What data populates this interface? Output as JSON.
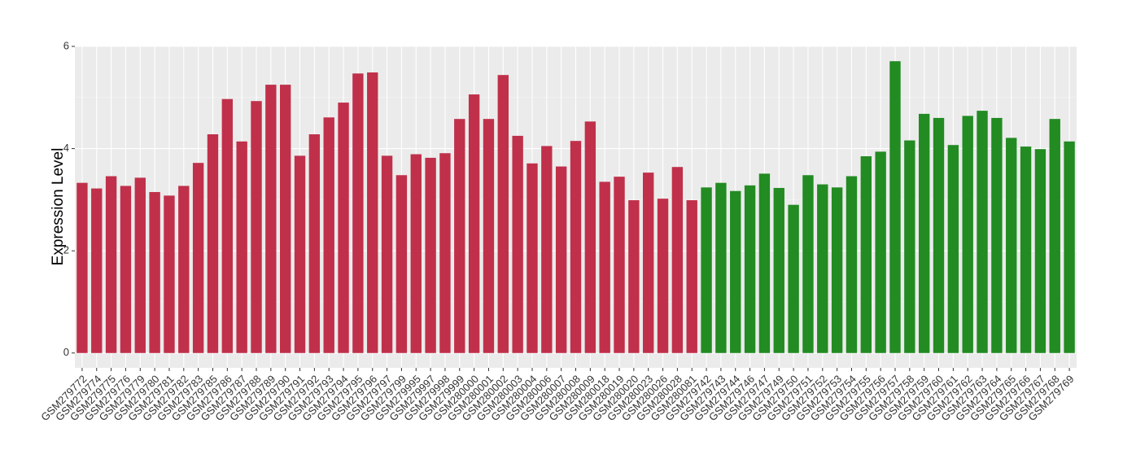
{
  "chart_data": {
    "type": "bar",
    "y_label": "Expression Level",
    "categories": [
      "GSM279772",
      "GSM279774",
      "GSM279775",
      "GSM279776",
      "GSM279779",
      "GSM279780",
      "GSM279781",
      "GSM279782",
      "GSM279783",
      "GSM279785",
      "GSM279786",
      "GSM279787",
      "GSM279788",
      "GSM279789",
      "GSM279790",
      "GSM279791",
      "GSM279792",
      "GSM279793",
      "GSM279794",
      "GSM279795",
      "GSM279796",
      "GSM279797",
      "GSM279799",
      "GSM279995",
      "GSM279997",
      "GSM279998",
      "GSM279999",
      "GSM280000",
      "GSM280001",
      "GSM280002",
      "GSM280003",
      "GSM280004",
      "GSM280006",
      "GSM280007",
      "GSM280008",
      "GSM280009",
      "GSM280018",
      "GSM280019",
      "GSM280020",
      "GSM280023",
      "GSM280026",
      "GSM280028",
      "GSM280081",
      "GSM279742",
      "GSM279743",
      "GSM279744",
      "GSM279746",
      "GSM279747",
      "GSM279749",
      "GSM279750",
      "GSM279751",
      "GSM279752",
      "GSM279753",
      "GSM279754",
      "GSM279755",
      "GSM279756",
      "GSM279757",
      "GSM279758",
      "GSM279759",
      "GSM279760",
      "GSM279761",
      "GSM279762",
      "GSM279763",
      "GSM279764",
      "GSM279765",
      "GSM279766",
      "GSM279767",
      "GSM279768",
      "GSM279769"
    ],
    "series": [
      {
        "color": "#c0304a",
        "values": [
          3.33,
          3.22,
          3.46,
          3.27,
          3.43,
          3.15,
          3.08,
          3.27,
          3.72,
          4.28,
          4.97,
          4.14,
          4.93,
          5.25,
          5.25,
          3.86,
          4.28,
          4.61,
          4.9,
          5.47,
          5.49,
          3.86,
          3.48,
          3.89,
          3.82,
          3.91,
          4.58,
          5.06,
          4.58,
          5.44,
          4.25,
          3.71,
          4.05,
          3.65,
          4.15,
          4.53,
          3.35,
          3.45,
          2.99,
          3.53,
          3.02,
          3.64,
          2.99,
          null,
          null,
          null,
          null,
          null,
          null,
          null,
          null,
          null,
          null,
          null,
          null,
          null,
          null,
          null,
          null,
          null,
          null,
          null,
          null,
          null,
          null,
          null,
          null,
          null,
          null
        ]
      },
      {
        "color": "#228b22",
        "values": [
          null,
          null,
          null,
          null,
          null,
          null,
          null,
          null,
          null,
          null,
          null,
          null,
          null,
          null,
          null,
          null,
          null,
          null,
          null,
          null,
          null,
          null,
          null,
          null,
          null,
          null,
          null,
          null,
          null,
          null,
          null,
          null,
          null,
          null,
          null,
          null,
          null,
          null,
          null,
          null,
          null,
          null,
          null,
          3.24,
          3.33,
          3.17,
          3.28,
          3.51,
          3.23,
          2.9,
          3.48,
          3.3,
          3.24,
          3.46,
          3.85,
          3.94,
          5.71,
          4.16,
          4.68,
          4.6,
          4.07,
          4.64,
          4.74,
          4.6,
          4.21,
          4.04,
          3.99,
          4.58,
          4.14
        ]
      }
    ],
    "ylim": [
      -0.29,
      6.0
    ],
    "yticks": [
      0,
      2,
      4,
      6
    ],
    "minor_yticks": [
      1,
      3,
      5
    ],
    "grid": true
  }
}
